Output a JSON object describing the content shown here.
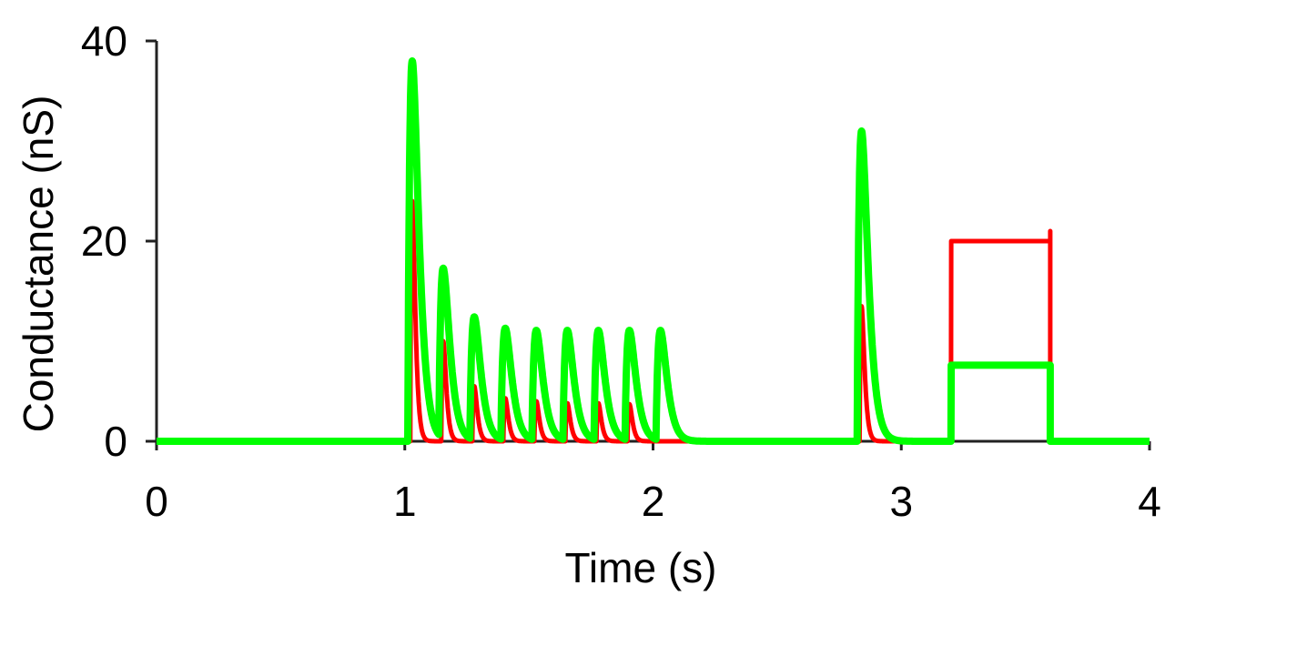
{
  "chart_data": {
    "type": "line",
    "title": "",
    "xlabel": "Time (s)",
    "ylabel": "Conductance (nS)",
    "xlim": [
      0,
      4
    ],
    "ylim": [
      0,
      40
    ],
    "xticks": [
      "0",
      "1",
      "2",
      "3",
      "4"
    ],
    "yticks": [
      "0",
      "20",
      "40"
    ],
    "grid": false,
    "legend": "none",
    "series": [
      {
        "name": "red",
        "color": "#ff0000",
        "pulse_times": [
          1.03,
          1.155,
          1.28,
          1.405,
          1.53,
          1.655,
          1.78,
          1.905,
          2.84
        ],
        "pulse_peaks": [
          24,
          10,
          5.5,
          4.3,
          4.0,
          3.8,
          3.8,
          3.7,
          13.5
        ],
        "step": {
          "start": 3.2,
          "end": 3.6,
          "value": 20,
          "end_spike": 21
        }
      },
      {
        "name": "green",
        "color": "#00ff00",
        "pulse_times": [
          1.03,
          1.155,
          1.28,
          1.405,
          1.53,
          1.655,
          1.78,
          1.905,
          2.03,
          2.84
        ],
        "pulse_peaks": [
          38,
          17,
          12.3,
          11.2,
          11,
          11,
          11,
          11,
          11,
          31
        ],
        "step": {
          "start": 3.2,
          "end": 3.6,
          "value": 7.6
        }
      }
    ]
  }
}
